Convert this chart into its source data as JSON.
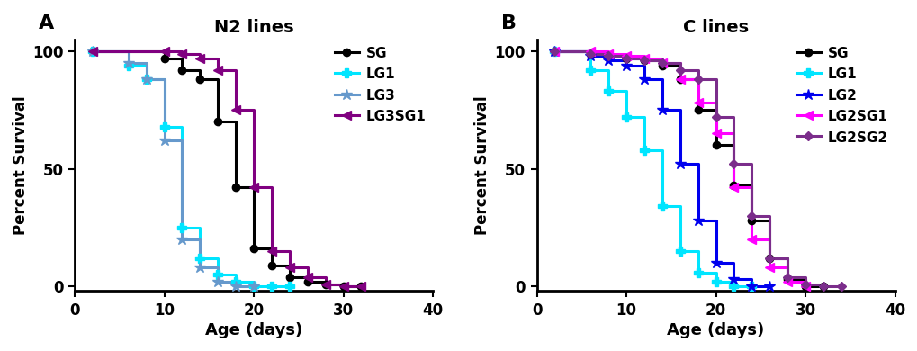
{
  "panel_A": {
    "title": "N2 lines",
    "label": "A",
    "series": {
      "SG": {
        "color": "#000000",
        "marker": "o",
        "x": [
          2,
          10,
          12,
          14,
          16,
          18,
          20,
          22,
          24,
          26,
          28,
          30,
          32
        ],
        "y": [
          100,
          97,
          92,
          88,
          70,
          42,
          16,
          9,
          4,
          2,
          1,
          0,
          0
        ]
      },
      "LG1": {
        "color": "#00E5FF",
        "marker": "P",
        "x": [
          2,
          6,
          8,
          10,
          12,
          14,
          16,
          18,
          20,
          22,
          24
        ],
        "y": [
          100,
          94,
          88,
          68,
          25,
          12,
          5,
          2,
          0,
          0,
          0
        ]
      },
      "LG3": {
        "color": "#6699CC",
        "marker": "*",
        "x": [
          2,
          6,
          8,
          10,
          12,
          14,
          16,
          18,
          20
        ],
        "y": [
          100,
          95,
          88,
          62,
          20,
          8,
          2,
          0,
          0
        ]
      },
      "LG3SG1": {
        "color": "#800080",
        "marker": "<",
        "x": [
          2,
          10,
          12,
          14,
          16,
          18,
          20,
          22,
          24,
          26,
          28,
          30,
          32
        ],
        "y": [
          100,
          100,
          99,
          97,
          92,
          75,
          42,
          15,
          8,
          4,
          1,
          0,
          0
        ]
      }
    },
    "xlabel": "Age (days)",
    "ylabel": "Percent Survival",
    "xlim": [
      0,
      40
    ],
    "ylim": [
      -2,
      105
    ],
    "xticks": [
      0,
      10,
      20,
      30,
      40
    ],
    "yticks": [
      0,
      50,
      100
    ]
  },
  "panel_B": {
    "title": "C lines",
    "label": "B",
    "series": {
      "SG": {
        "color": "#000000",
        "marker": "o",
        "x": [
          2,
          6,
          8,
          10,
          12,
          14,
          16,
          18,
          20,
          22,
          24,
          26,
          28,
          30,
          32
        ],
        "y": [
          100,
          99,
          98,
          97,
          96,
          94,
          88,
          75,
          60,
          43,
          28,
          12,
          3,
          0,
          0
        ]
      },
      "LG1": {
        "color": "#00E5FF",
        "marker": "P",
        "x": [
          2,
          6,
          8,
          10,
          12,
          14,
          16,
          18,
          20,
          22,
          24
        ],
        "y": [
          100,
          92,
          83,
          72,
          58,
          34,
          15,
          6,
          2,
          0,
          0
        ]
      },
      "LG2": {
        "color": "#0000EE",
        "marker": "*",
        "x": [
          2,
          6,
          8,
          10,
          12,
          14,
          16,
          18,
          20,
          22,
          24,
          26
        ],
        "y": [
          100,
          98,
          96,
          94,
          88,
          75,
          52,
          28,
          10,
          3,
          0,
          0
        ]
      },
      "LG2SG1": {
        "color": "#FF00FF",
        "marker": "<",
        "x": [
          2,
          6,
          8,
          10,
          12,
          14,
          16,
          18,
          20,
          22,
          24,
          26,
          28,
          30
        ],
        "y": [
          100,
          100,
          99,
          98,
          97,
          95,
          88,
          78,
          65,
          42,
          20,
          8,
          2,
          0
        ]
      },
      "LG2SG2": {
        "color": "#7B2D8B",
        "marker": "D",
        "x": [
          2,
          6,
          8,
          10,
          12,
          14,
          16,
          18,
          20,
          22,
          24,
          26,
          28,
          30,
          32,
          34
        ],
        "y": [
          100,
          99,
          98,
          97,
          96,
          95,
          92,
          88,
          72,
          52,
          30,
          12,
          4,
          1,
          0,
          0
        ]
      }
    },
    "xlabel": "Age (days)",
    "ylabel": "Percent Survival",
    "xlim": [
      0,
      40
    ],
    "ylim": [
      -2,
      105
    ],
    "xticks": [
      0,
      10,
      20,
      30,
      40
    ],
    "yticks": [
      0,
      50,
      100
    ]
  }
}
